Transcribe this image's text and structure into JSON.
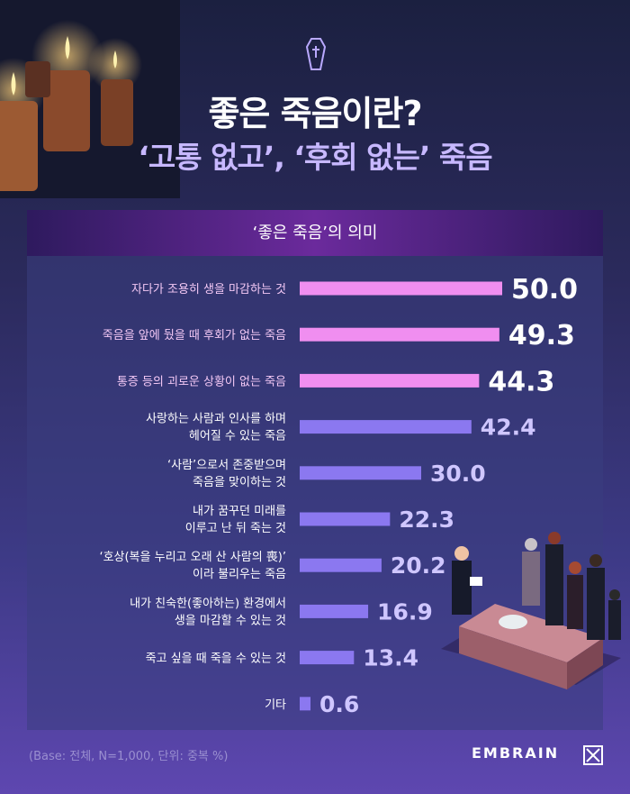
{
  "title": "좋은 죽음이란?",
  "subtitle": "‘고통 없고’, ‘후회 없는’ 죽음",
  "chart_data": {
    "type": "bar",
    "orientation": "horizontal",
    "title": "‘좋은 죽음’의 의미",
    "categories": [
      [
        "자다가 조용히 생을 마감하는 것"
      ],
      [
        "죽음을 앞에 뒀을 때 후회가 없는 죽음"
      ],
      [
        "통증 등의 괴로운 상황이 없는 죽음"
      ],
      [
        "사랑하는 사람과 인사를 하며",
        "헤어질 수 있는 죽음"
      ],
      [
        "‘사람’으로서 존중받으며",
        "죽음을 맞이하는 것"
      ],
      [
        "내가 꿈꾸던 미래를",
        "이루고 난 뒤 죽는 것"
      ],
      [
        "‘호상(복을 누리고 오래 산 사람의 喪)’",
        "이라 불리우는 죽음"
      ],
      [
        "내가 친숙한(좋아하는) 환경에서",
        "생을 마감할 수 있는 것"
      ],
      [
        "죽고 싶을 때 죽을 수 있는 것"
      ],
      [
        "기타"
      ]
    ],
    "values": [
      50.0,
      49.3,
      44.3,
      42.4,
      30.0,
      22.3,
      20.2,
      16.9,
      13.4,
      0.6
    ],
    "value_labels": [
      "50.0",
      "49.3",
      "44.3",
      "42.4",
      "30.0",
      "22.3",
      "20.2",
      "16.9",
      "13.4",
      "0.6"
    ],
    "highlight_count": 3,
    "colors": {
      "highlight_bar": "#f08ef0",
      "bar": "#8b78f0",
      "highlight_value": "#ffffff",
      "value": "#cfc6ff"
    }
  },
  "footnote": "(Base: 전체, N=1,000, 단위: 중복 %)",
  "brand": "EMBRAIN",
  "icons": [
    "candles",
    "coffin-icon",
    "embrain-logo-icon",
    "funeral-illustration"
  ]
}
